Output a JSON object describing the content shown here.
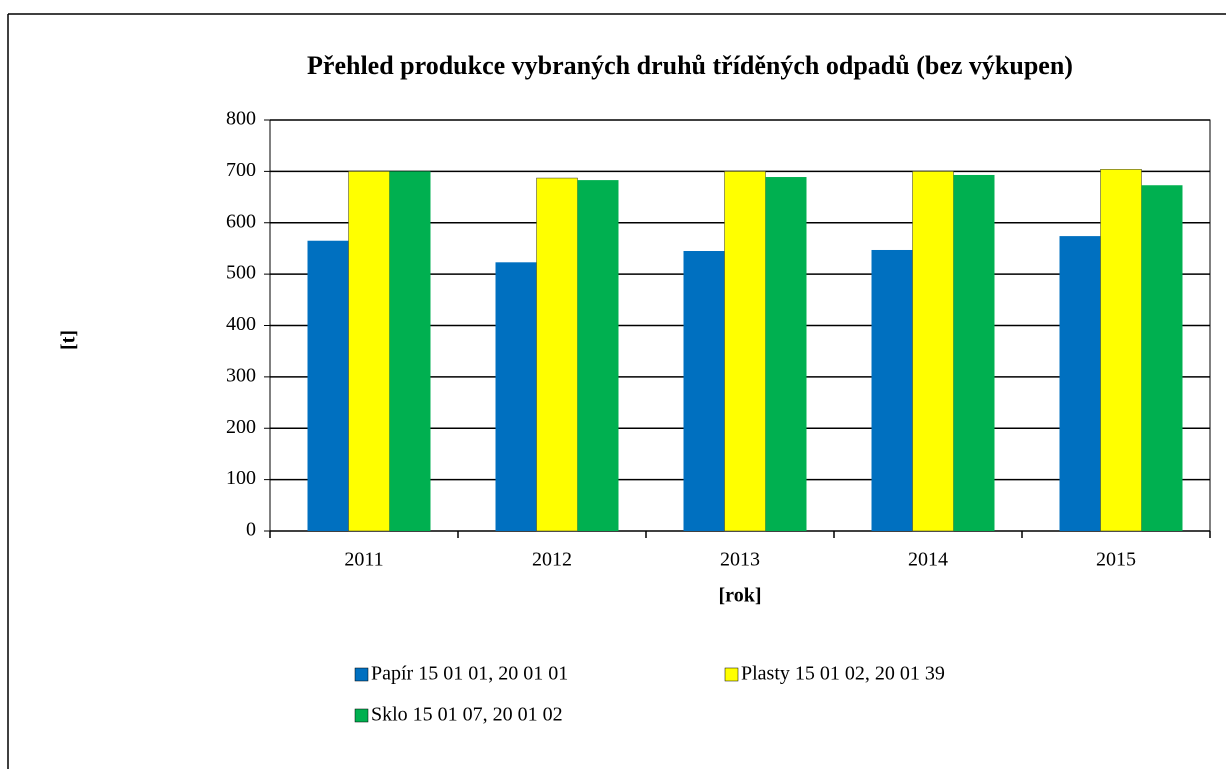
{
  "chart_data": {
    "type": "bar",
    "title": "Přehled produkce vybraných druhů tříděných odpadů (bez výkupen)",
    "y_label": "[t]",
    "x_label": "[rok]",
    "categories": [
      "2011",
      "2012",
      "2013",
      "2014",
      "2015"
    ],
    "series": [
      {
        "name": "Papír 15 01 01, 20 01 01",
        "color": "#0070c0",
        "values": [
          565,
          523,
          545,
          547,
          574
        ]
      },
      {
        "name": "Plasty 15 01 02, 20 01 39",
        "color": "#ffff00",
        "values": [
          700,
          687,
          700,
          700,
          704
        ]
      },
      {
        "name": "Sklo 15 01 07, 20 01 02",
        "color": "#00b050",
        "values": [
          700,
          683,
          689,
          693,
          673
        ]
      }
    ],
    "ylim": [
      0,
      800
    ],
    "yticks": [
      0,
      100,
      200,
      300,
      400,
      500,
      600,
      700,
      800
    ],
    "grid": true,
    "legend": "bottom"
  }
}
